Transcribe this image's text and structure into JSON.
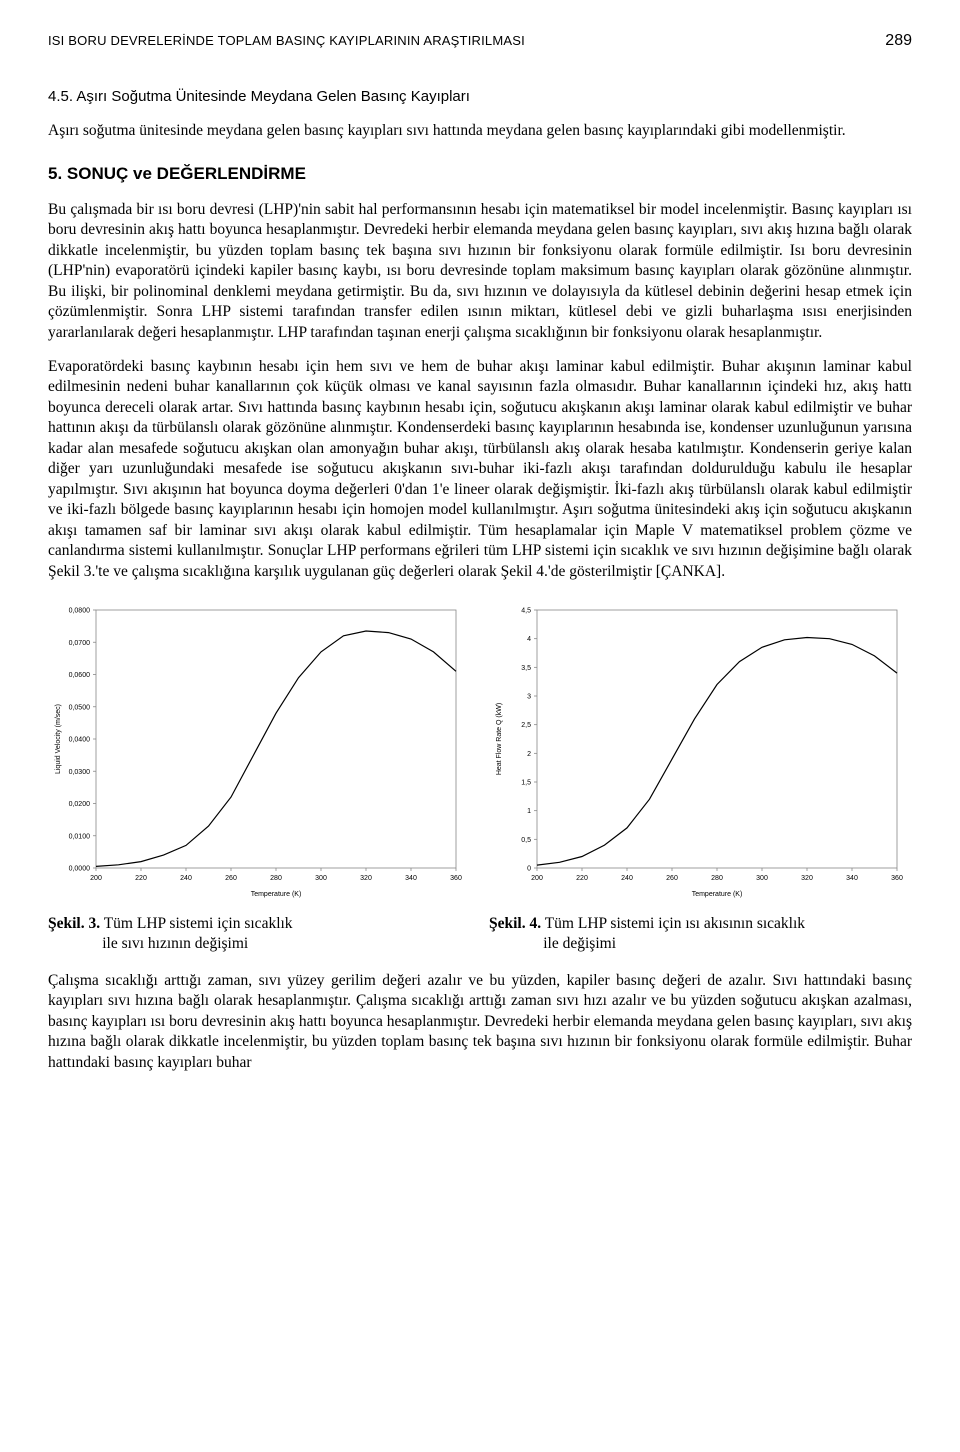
{
  "header": {
    "running_title": "ISI BORU DEVRELERİNDE TOPLAM BASINÇ KAYIPLARININ ARAŞTIRILMASI",
    "page_number": "289"
  },
  "subsection": {
    "num": "4.5.",
    "title": "Aşırı Soğutma Ünitesinde Meydana Gelen Basınç Kayıpları"
  },
  "sub_para": "Aşırı soğutma ünitesinde meydana gelen basınç kayıpları sıvı hattında meydana gelen basınç kayıplarındaki gibi modellenmiştir.",
  "section5": {
    "num": "5.",
    "title": "SONUÇ ve DEĞERLENDİRME"
  },
  "p1": "Bu çalışmada bir ısı boru devresi (LHP)'nin sabit hal performansının hesabı için matematiksel bir model incelenmiştir. Basınç kayıpları ısı boru devresinin akış hattı boyunca hesaplanmıştır. Devredeki herbir elemanda meydana gelen basınç kayıpları, sıvı akış hızına bağlı olarak dikkatle incelenmiştir, bu yüzden toplam basınç tek başına sıvı hızının bir fonksiyonu olarak formüle edilmiştir. Isı boru devresinin (LHP'nin) evaporatörü içindeki kapiler basınç kaybı, ısı boru devresinde toplam maksimum basınç kayıpları olarak gözönüne alınmıştır. Bu ilişki, bir polinominal denklemi meydana getirmiştir. Bu da, sıvı hızının ve dolayısıyla da kütlesel debinin değerini hesap etmek için çözümlenmiştir. Sonra LHP sistemi tarafından transfer edilen ısının miktarı, kütlesel debi ve gizli buharlaşma ısısı enerjisinden yararlanılarak değeri hesaplanmıştır. LHP tarafından taşınan enerji çalışma sıcaklığının bir fonksiyonu olarak hesaplanmıştır.",
  "p2": "Evaporatördeki basınç kaybının hesabı için hem sıvı ve hem de buhar akışı laminar kabul edilmiştir. Buhar akışının laminar kabul edilmesinin nedeni buhar kanallarının çok küçük olması ve kanal sayısının fazla olmasıdır. Buhar kanallarının içindeki hız, akış hattı boyunca dereceli olarak artar. Sıvı hattında basınç kaybının hesabı için, soğutucu akışkanın akışı laminar olarak kabul edilmiştir ve buhar hattının akışı da türbülanslı olarak gözönüne alınmıştır. Kondenserdeki basınç kayıplarının hesabında ise, kondenser uzunluğunun yarısına kadar alan mesafede soğutucu akışkan olan amonyağın buhar akışı, türbülanslı akış olarak hesaba katılmıştır. Kondenserin geriye kalan diğer yarı uzunluğundaki mesafede ise soğutucu akışkanın sıvı-buhar iki-fazlı akışı tarafından doldurulduğu kabulu ile hesaplar yapılmıştır. Sıvı akışının hat boyunca doyma değerleri 0'dan 1'e lineer olarak değişmiştir. İki-fazlı akış türbülanslı olarak kabul edilmiştir ve iki-fazlı bölgede basınç kayıplarının hesabı için homojen model kullanılmıştır. Aşırı soğutma ünitesindeki akış için soğutucu akışkanın akışı tamamen saf bir laminar sıvı akışı olarak kabul edilmiştir. Tüm hesaplamalar için Maple V matematiksel problem çözme ve canlandırma sistemi kullanılmıştır. Sonuçlar LHP performans eğrileri tüm LHP sistemi için sıcaklık ve sıvı hızının değişimine bağlı olarak Şekil 3.'te ve çalışma sıcaklığına karşılık uygulanan güç değerleri olarak Şekil 4.'de gösterilmiştir [ÇANKA].",
  "chart_left": {
    "type": "line",
    "xlabel": "Temperature (K)",
    "ylabel": "Liquid Velocity (m/sec)",
    "xlim": [
      200,
      360
    ],
    "ylim": [
      0.0,
      0.08
    ],
    "xticks": [
      200,
      220,
      240,
      260,
      280,
      300,
      320,
      340,
      360
    ],
    "yticks": [
      "0,0000",
      "0,0100",
      "0,0200",
      "0,0300",
      "0,0400",
      "0,0500",
      "0,0600",
      "0,0700",
      "0,0800"
    ],
    "ytick_values": [
      0.0,
      0.01,
      0.02,
      0.03,
      0.04,
      0.05,
      0.06,
      0.07,
      0.08
    ],
    "line_color": "#000000",
    "background_color": "#ffffff",
    "border_color": "#888888",
    "points": [
      [
        200,
        0.0005
      ],
      [
        210,
        0.001
      ],
      [
        220,
        0.002
      ],
      [
        230,
        0.004
      ],
      [
        240,
        0.007
      ],
      [
        250,
        0.013
      ],
      [
        260,
        0.022
      ],
      [
        270,
        0.035
      ],
      [
        280,
        0.048
      ],
      [
        290,
        0.059
      ],
      [
        300,
        0.067
      ],
      [
        310,
        0.072
      ],
      [
        320,
        0.0735
      ],
      [
        330,
        0.073
      ],
      [
        340,
        0.071
      ],
      [
        350,
        0.067
      ],
      [
        360,
        0.061
      ]
    ]
  },
  "chart_right": {
    "type": "line",
    "xlabel": "Temperature (K)",
    "ylabel": "Heat Flow Rate Q (kW)",
    "xlim": [
      200,
      360
    ],
    "ylim": [
      0,
      4.5
    ],
    "xticks": [
      200,
      220,
      240,
      260,
      280,
      300,
      320,
      340,
      360
    ],
    "yticks": [
      "0",
      "0,5",
      "1",
      "1,5",
      "2",
      "2,5",
      "3",
      "3,5",
      "4",
      "4,5"
    ],
    "ytick_values": [
      0,
      0.5,
      1,
      1.5,
      2,
      2.5,
      3,
      3.5,
      4,
      4.5
    ],
    "line_color": "#000000",
    "background_color": "#ffffff",
    "border_color": "#888888",
    "points": [
      [
        200,
        0.05
      ],
      [
        210,
        0.1
      ],
      [
        220,
        0.2
      ],
      [
        230,
        0.4
      ],
      [
        240,
        0.7
      ],
      [
        250,
        1.2
      ],
      [
        260,
        1.9
      ],
      [
        270,
        2.6
      ],
      [
        280,
        3.2
      ],
      [
        290,
        3.6
      ],
      [
        300,
        3.85
      ],
      [
        310,
        3.98
      ],
      [
        320,
        4.02
      ],
      [
        330,
        4.0
      ],
      [
        340,
        3.9
      ],
      [
        350,
        3.7
      ],
      [
        360,
        3.4
      ]
    ]
  },
  "caption_left": {
    "label": "Şekil. 3.",
    "line1": " Tüm LHP sistemi için sıcaklık",
    "line2": "ile sıvı hızının değişimi"
  },
  "caption_right": {
    "label": "Şekil. 4.",
    "line1": " Tüm LHP sistemi için ısı akısının sıcaklık",
    "line2": "ile değişimi"
  },
  "p3": "Çalışma sıcaklığı arttığı zaman, sıvı yüzey gerilim değeri azalır ve bu yüzden, kapiler basınç değeri de azalır. Sıvı hattındaki basınç kayıpları sıvı hızına bağlı olarak hesaplanmıştır. Çalışma sıcaklığı arttığı zaman sıvı hızı azalır ve bu yüzden soğutucu akışkan azalması, basınç kayıpları ısı boru devresinin akış hattı boyunca hesaplanmıştır. Devredeki herbir elemanda meydana gelen basınç kayıpları, sıvı akış hızına bağlı olarak dikkatle incelenmiştir, bu yüzden toplam basınç tek başına sıvı hızının bir fonksiyonu olarak formüle edilmiştir. Buhar hattındaki basınç kayıpları buhar"
}
